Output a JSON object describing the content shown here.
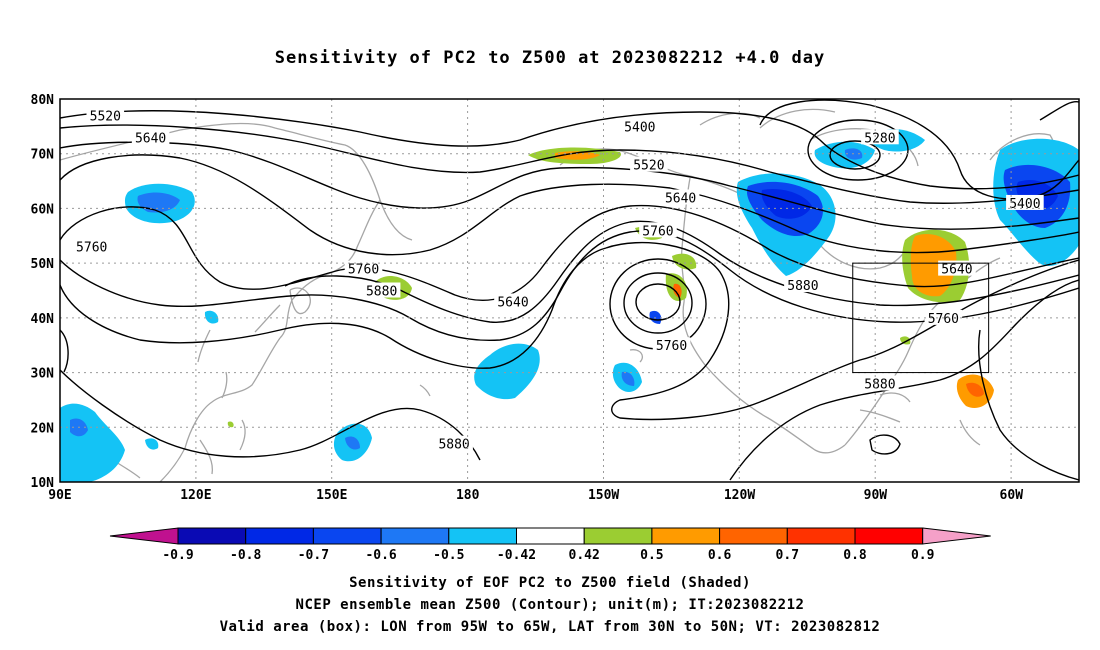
{
  "title": "Sensitivity of PC2 to Z500 at 2023082212 +4.0 day",
  "lat_labels": [
    "80N",
    "70N",
    "60N",
    "50N",
    "40N",
    "30N",
    "20N",
    "10N"
  ],
  "lon_labels": [
    "90E",
    "120E",
    "150E",
    "180",
    "150W",
    "120W",
    "90W",
    "60W"
  ],
  "contour_labels": [
    {
      "text": "5520",
      "lon": 100,
      "lat": 77
    },
    {
      "text": "5640",
      "lon": 110,
      "lat": 73
    },
    {
      "text": "5760",
      "lon": 97,
      "lat": 53
    },
    {
      "text": "5400",
      "lon": -142,
      "lat": 75
    },
    {
      "text": "5520",
      "lon": -140,
      "lat": 68
    },
    {
      "text": "5640",
      "lon": -133,
      "lat": 62
    },
    {
      "text": "5760",
      "lon": -138,
      "lat": 56
    },
    {
      "text": "5280",
      "lon": -89,
      "lat": 73
    },
    {
      "text": "5400",
      "lon": -57,
      "lat": 61
    },
    {
      "text": "5760",
      "lon": 157,
      "lat": 49
    },
    {
      "text": "5880",
      "lon": 161,
      "lat": 45
    },
    {
      "text": "5640",
      "lon": -170,
      "lat": 43
    },
    {
      "text": "5760",
      "lon": -135,
      "lat": 35
    },
    {
      "text": "5880",
      "lon": -106,
      "lat": 46
    },
    {
      "text": "5640",
      "lon": -72,
      "lat": 49
    },
    {
      "text": "5760",
      "lon": -75,
      "lat": 40
    },
    {
      "text": "5880",
      "lon": -89,
      "lat": 28
    },
    {
      "text": "5880",
      "lon": -183,
      "lat": 17
    }
  ],
  "valid_box": {
    "lon_min": -95,
    "lon_max": -65,
    "lat_min": 30,
    "lat_max": 50
  },
  "colorbar": {
    "labels": [
      "-0.9",
      "-0.8",
      "-0.7",
      "-0.6",
      "-0.5",
      "-0.42",
      "0.42",
      "0.5",
      "0.6",
      "0.7",
      "0.8",
      "0.9"
    ],
    "colors": [
      "#c0118f",
      "#0a0ab4",
      "#0028e6",
      "#0a46f0",
      "#1e78f5",
      "#14c3f5",
      "#ffffff",
      "#9bcd32",
      "#ff9b00",
      "#ff6400",
      "#ff3200",
      "#ff0000",
      "#f5a0c8"
    ]
  },
  "footer": {
    "line1": "Sensitivity of EOF PC2 to Z500 field (Shaded)",
    "line2": "NCEP ensemble mean Z500 (Contour); unit(m); IT:2023082212",
    "line3": "Valid area (box): LON from 95W to 65W, LAT from 30N to 50N; VT: 2023082812"
  }
}
